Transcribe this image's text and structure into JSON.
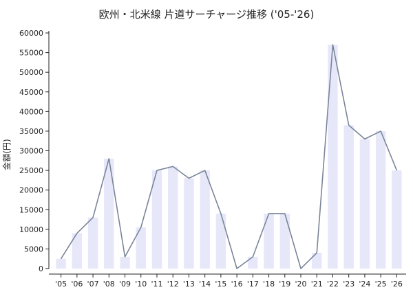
{
  "chart_data": {
    "type": "bar",
    "title": "欧州・北米線 片道サーチャージ推移 ('05-'26)",
    "xlabel": "",
    "ylabel": "金額(円)",
    "ylim": [
      0,
      60000
    ],
    "yticks": [
      0,
      5000,
      10000,
      15000,
      20000,
      25000,
      30000,
      35000,
      40000,
      45000,
      50000,
      55000,
      60000
    ],
    "categories": [
      "'05",
      "'06",
      "'07",
      "'08",
      "'09",
      "'10",
      "'11",
      "'12",
      "'13",
      "'14",
      "'15",
      "'16",
      "'17",
      "'18",
      "'19",
      "'20",
      "'21",
      "'22",
      "'23",
      "'24",
      "'25",
      "'26"
    ],
    "values": [
      2500,
      9000,
      13000,
      28000,
      3000,
      10500,
      25000,
      26000,
      23000,
      25000,
      14000,
      0,
      3000,
      14000,
      14000,
      0,
      4000,
      57000,
      36500,
      33000,
      35000,
      25000
    ],
    "overlay": "line",
    "grid": false,
    "colors": {
      "bar": "#e6e8fa",
      "line": "#7a8598",
      "axis": "#222222"
    }
  }
}
